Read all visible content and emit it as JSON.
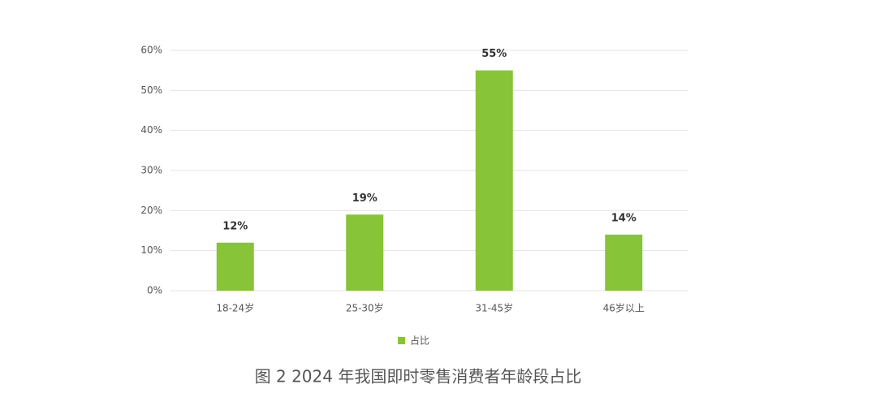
{
  "chart_data": {
    "type": "bar",
    "title": "图 2 2024 年我国即时零售消费者年龄段占比",
    "categories": [
      "18-24岁",
      "25-30岁",
      "31-45岁",
      "46岁以上"
    ],
    "series": [
      {
        "name": "占比",
        "color": "#88c437",
        "values": [
          12,
          19,
          55,
          14
        ],
        "value_labels": [
          "12%",
          "19%",
          "55%",
          "14%"
        ]
      }
    ],
    "ylim": [
      0,
      60
    ],
    "yticks": [
      {
        "value": 0,
        "label": "0%"
      },
      {
        "value": 10,
        "label": "10%"
      },
      {
        "value": 20,
        "label": "20%"
      },
      {
        "value": 30,
        "label": "30%"
      },
      {
        "value": 40,
        "label": "40%"
      },
      {
        "value": 50,
        "label": "50%"
      },
      {
        "value": 60,
        "label": "60%"
      }
    ],
    "grid": true,
    "legend": "bottom"
  }
}
